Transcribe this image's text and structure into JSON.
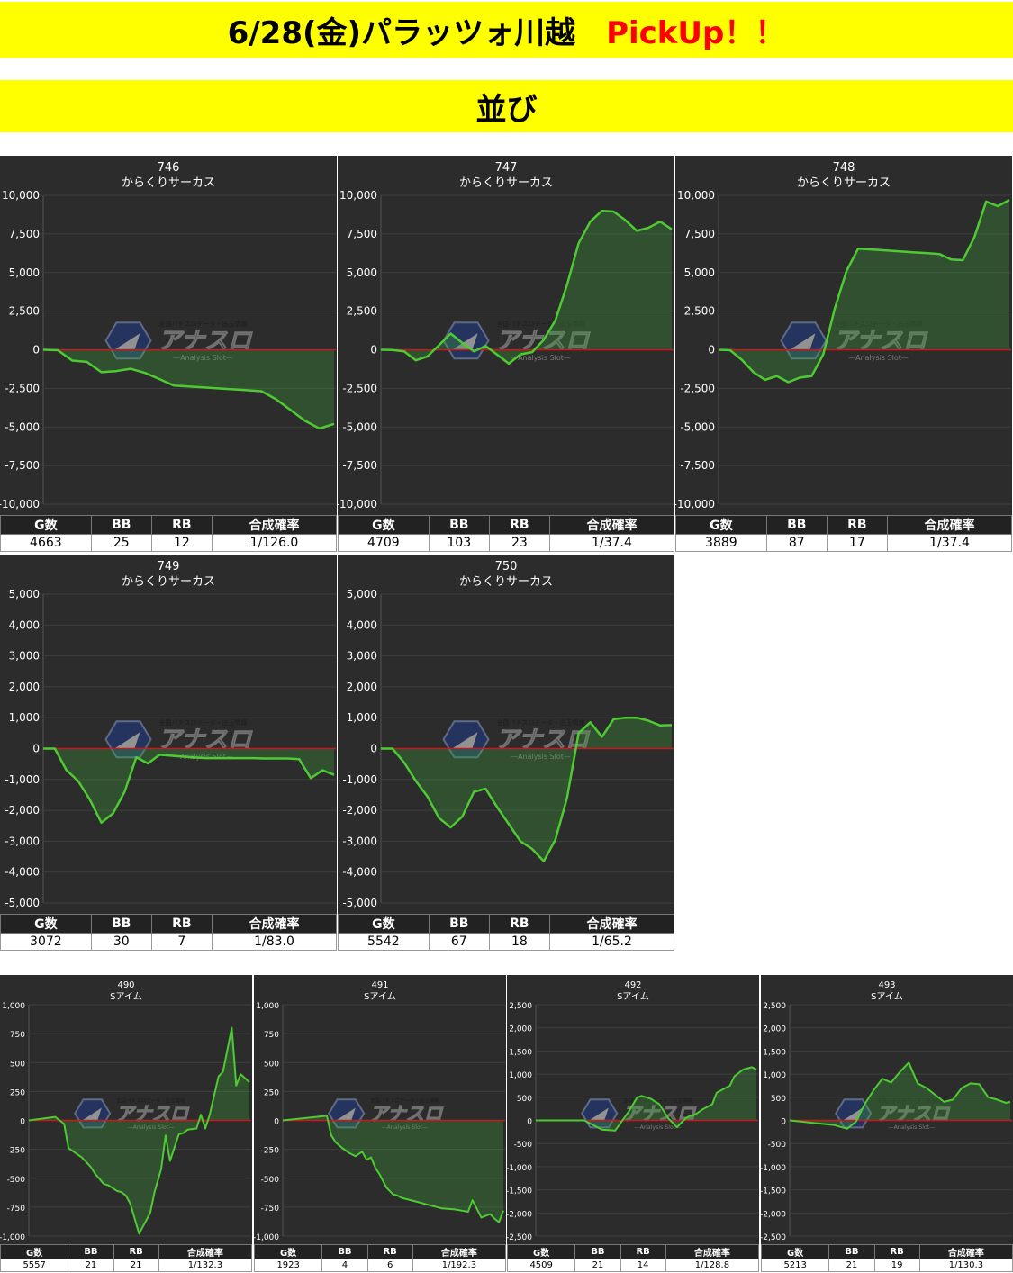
{
  "header": {
    "title": "6/28(金)パラッツォ川越",
    "pickup": "PickUp！！",
    "section": "並び"
  },
  "colors": {
    "banner": "#ffff00",
    "accent_red": "#ff0000",
    "panel_bg": "#2c2c2c",
    "line": "#4ecb32",
    "zero_line": "#c8191e"
  },
  "watermark": {
    "text": "アナスロ",
    "sub": "—Analysis Slot—",
    "tag": "全国パチスロデータ・出玉情報",
    "icon": "anaslo-logo-icon"
  },
  "table_headers": [
    "G数",
    "BB",
    "RB",
    "合成確率"
  ],
  "chart_data": [
    {
      "type": "line",
      "number": "746",
      "machine": "からくりサーカス",
      "ylim": [
        -10000,
        10000
      ],
      "yticks": [
        10000,
        7500,
        5000,
        2500,
        0,
        -2500,
        -5000,
        -7500,
        -10000
      ],
      "x": [
        0,
        5,
        10,
        15,
        20,
        25,
        30,
        35,
        40,
        45,
        50,
        55,
        60,
        65,
        70,
        75,
        80,
        85,
        90,
        95,
        100
      ],
      "y": [
        0,
        -30,
        -700,
        -780,
        -1450,
        -1380,
        -1230,
        -1500,
        -1900,
        -2320,
        -2380,
        -2440,
        -2500,
        -2560,
        -2620,
        -2680,
        -3200,
        -3900,
        -4600,
        -5100,
        -4800
      ],
      "stats": {
        "games": "4663",
        "bb": "25",
        "rb": "12",
        "rate": "1/126.0"
      }
    },
    {
      "type": "line",
      "number": "747",
      "machine": "からくりサーカス",
      "ylim": [
        -10000,
        10000
      ],
      "yticks": [
        10000,
        7500,
        5000,
        2500,
        0,
        -2500,
        -5000,
        -7500,
        -10000
      ],
      "x": [
        0,
        4,
        8,
        12,
        16,
        20,
        24,
        28,
        32,
        36,
        40,
        44,
        48,
        52,
        56,
        60,
        64,
        68,
        72,
        76,
        80,
        84,
        88,
        92,
        96,
        100
      ],
      "y": [
        0,
        -20,
        -100,
        -680,
        -430,
        300,
        1050,
        450,
        -100,
        250,
        -320,
        -900,
        -300,
        -150,
        650,
        1900,
        4200,
        6900,
        8300,
        9000,
        8950,
        8400,
        7700,
        7900,
        8300,
        7800
      ],
      "stats": {
        "games": "4709",
        "bb": "103",
        "rb": "23",
        "rate": "1/37.4"
      }
    },
    {
      "type": "line",
      "number": "748",
      "machine": "からくりサーカス",
      "ylim": [
        -10000,
        10000
      ],
      "yticks": [
        10000,
        7500,
        5000,
        2500,
        0,
        -2500,
        -5000,
        -7500,
        -10000
      ],
      "x": [
        0,
        4,
        8,
        12,
        16,
        20,
        24,
        28,
        32,
        36,
        40,
        44,
        48,
        52,
        56,
        60,
        64,
        68,
        72,
        76,
        80,
        84,
        88,
        92,
        96,
        100
      ],
      "y": [
        0,
        -30,
        -650,
        -1450,
        -1950,
        -1700,
        -2100,
        -1800,
        -1700,
        -300,
        2700,
        5100,
        6550,
        6500,
        6450,
        6400,
        6350,
        6300,
        6250,
        6200,
        5850,
        5800,
        7300,
        9600,
        9300,
        9700
      ],
      "stats": {
        "games": "3889",
        "bb": "87",
        "rb": "17",
        "rate": "1/37.4"
      }
    },
    {
      "type": "line",
      "number": "749",
      "machine": "からくりサーカス",
      "ylim": [
        -5000,
        5000
      ],
      "yticks": [
        5000,
        4000,
        3000,
        2000,
        1000,
        0,
        -1000,
        -2000,
        -3000,
        -4000,
        -5000
      ],
      "x": [
        0,
        4,
        8,
        12,
        16,
        20,
        24,
        28,
        32,
        36,
        40,
        44,
        48,
        52,
        56,
        60,
        64,
        68,
        72,
        76,
        80,
        84,
        88,
        92,
        96,
        100
      ],
      "y": [
        0,
        0,
        -700,
        -1050,
        -1650,
        -2400,
        -2100,
        -1400,
        -280,
        -480,
        -200,
        -230,
        -260,
        -290,
        -310,
        -310,
        -310,
        -310,
        -310,
        -320,
        -320,
        -320,
        -340,
        -960,
        -700,
        -850
      ],
      "stats": {
        "games": "3072",
        "bb": "30",
        "rb": "7",
        "rate": "1/83.0"
      }
    },
    {
      "type": "line",
      "number": "750",
      "machine": "からくりサーカス",
      "ylim": [
        -5000,
        5000
      ],
      "yticks": [
        5000,
        4000,
        3000,
        2000,
        1000,
        0,
        -1000,
        -2000,
        -3000,
        -4000,
        -5000
      ],
      "x": [
        0,
        4,
        8,
        12,
        16,
        20,
        24,
        28,
        32,
        36,
        40,
        44,
        48,
        52,
        56,
        60,
        64,
        68,
        72,
        76,
        80,
        84,
        88,
        92,
        96,
        100
      ],
      "y": [
        0,
        0,
        -450,
        -1050,
        -1550,
        -2250,
        -2550,
        -2200,
        -1400,
        -1300,
        -1900,
        -2450,
        -3000,
        -3250,
        -3650,
        -2950,
        -1600,
        500,
        850,
        380,
        950,
        1000,
        1000,
        900,
        750,
        760
      ],
      "stats": {
        "games": "5542",
        "bb": "67",
        "rb": "18",
        "rate": "1/65.2"
      }
    },
    {
      "type": "line",
      "number": "490",
      "machine": "Sアイム",
      "ylim": [
        -1000,
        1000
      ],
      "yticks": [
        1000,
        750,
        500,
        250,
        0,
        -250,
        -500,
        -750,
        -1000
      ],
      "x": [
        0,
        12,
        16,
        18,
        24,
        28,
        30,
        34,
        36,
        40,
        42,
        44,
        46,
        50,
        55,
        57,
        60,
        62,
        64,
        68,
        70,
        72,
        76,
        78,
        80,
        82,
        86,
        88,
        92,
        94,
        96,
        100
      ],
      "y": [
        0,
        30,
        -30,
        -240,
        -320,
        -400,
        -460,
        -550,
        -560,
        -610,
        -620,
        -650,
        -720,
        -980,
        -800,
        -620,
        -420,
        -130,
        -350,
        -120,
        -110,
        -80,
        -70,
        50,
        -70,
        50,
        380,
        420,
        800,
        300,
        400,
        330
      ],
      "stats": {
        "games": "5557",
        "bb": "21",
        "rb": "21",
        "rate": "1/132.3"
      }
    },
    {
      "type": "line",
      "number": "491",
      "machine": "Sアイム",
      "ylim": [
        -1000,
        1000
      ],
      "yticks": [
        1000,
        750,
        500,
        250,
        0,
        -250,
        -500,
        -750,
        -1000
      ],
      "x": [
        0,
        20,
        22,
        24,
        27,
        30,
        33,
        36,
        38,
        40,
        42,
        44,
        47,
        50,
        52,
        54,
        60,
        66,
        72,
        78,
        84,
        86,
        90,
        94,
        96,
        98,
        100
      ],
      "y": [
        0,
        40,
        -130,
        -190,
        -240,
        -280,
        -310,
        -270,
        -340,
        -320,
        -410,
        -470,
        -580,
        -640,
        -650,
        -670,
        -700,
        -730,
        -760,
        -770,
        -790,
        -690,
        -840,
        -810,
        -850,
        -880,
        -780
      ],
      "stats": {
        "games": "1923",
        "bb": "4",
        "rb": "6",
        "rate": "1/192.3"
      }
    },
    {
      "type": "line",
      "number": "492",
      "machine": "Sアイム",
      "ylim": [
        -2500,
        2500
      ],
      "yticks": [
        2500,
        2000,
        1500,
        1000,
        500,
        0,
        -500,
        -1000,
        -1500,
        -2000,
        -2500
      ],
      "x": [
        0,
        10,
        22,
        30,
        36,
        42,
        46,
        48,
        52,
        56,
        60,
        64,
        68,
        70,
        72,
        76,
        80,
        82,
        84,
        86,
        88,
        90,
        94,
        98,
        100
      ],
      "y": [
        0,
        0,
        0,
        -200,
        -220,
        180,
        500,
        530,
        470,
        350,
        50,
        -150,
        50,
        100,
        120,
        250,
        350,
        600,
        650,
        700,
        750,
        950,
        1100,
        1150,
        1100
      ],
      "stats": {
        "games": "4509",
        "bb": "21",
        "rb": "14",
        "rate": "1/128.8"
      }
    },
    {
      "type": "line",
      "number": "493",
      "machine": "Sアイム",
      "ylim": [
        -2500,
        2500
      ],
      "yticks": [
        2500,
        2000,
        1500,
        1000,
        500,
        0,
        -500,
        -1000,
        -1500,
        -2000,
        -2500
      ],
      "x": [
        0,
        10,
        20,
        26,
        30,
        34,
        38,
        42,
        46,
        50,
        54,
        58,
        62,
        66,
        70,
        74,
        78,
        82,
        86,
        90,
        94,
        98,
        100
      ],
      "y": [
        0,
        -50,
        -100,
        -180,
        -30,
        350,
        650,
        900,
        820,
        1050,
        1250,
        800,
        700,
        550,
        400,
        450,
        700,
        800,
        780,
        500,
        450,
        380,
        400
      ],
      "stats": {
        "games": "5213",
        "bb": "21",
        "rb": "19",
        "rate": "1/130.3"
      }
    }
  ]
}
